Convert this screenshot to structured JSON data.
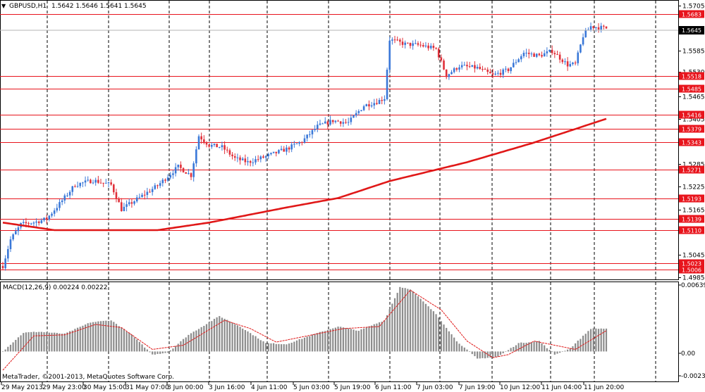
{
  "header": {
    "dropdown_icon": "triangle-down-icon",
    "symbol": "GBPUSD,H1",
    "ohlc": "1.5642 1.5646 1.5641 1.5645"
  },
  "macd": {
    "label": "MACD(12,26,9) 0.00224 0.00222",
    "axis_top": "0.00639",
    "axis_zero": "0.00",
    "axis_bottom": "-0.00234"
  },
  "copyright": "MetaTrader, ©2001-2013, MetaQuotes Software Corp.",
  "price_axis_labels": [
    "1.5705",
    "1.5585",
    "1.5530",
    "1.5465",
    "1.5405",
    "1.5285",
    "1.5225",
    "1.5165",
    "1.5045",
    "1.4985"
  ],
  "current_price": "1.5645",
  "red_levels": [
    "1.5683",
    "1.5518",
    "1.5485",
    "1.5416",
    "1.5379",
    "1.5343",
    "1.5271",
    "1.5193",
    "1.5139",
    "1.5110",
    "1.5023",
    "1.5006"
  ],
  "time_labels": [
    "29 May 2013",
    "29 May 23:00",
    "30 May 15:00",
    "31 May 07:00",
    "3 Jun 00:00",
    "3 Jun 16:00",
    "4 Jun 11:00",
    "5 Jun 03:00",
    "5 Jun 19:00",
    "6 Jun 11:00",
    "7 Jun 03:00",
    "7 Jun 19:00",
    "10 Jun 12:00",
    "11 Jun 04:00",
    "11 Jun 20:00"
  ],
  "colors": {
    "bull": "#3a78d8",
    "bear": "#e0303a",
    "level": "#e8141c",
    "ma": "#e01818",
    "histogram": "#8c8c8c",
    "signal": "#e01818"
  },
  "chart_data": {
    "type": "candlestick",
    "symbol": "GBPUSD",
    "timeframe": "H1",
    "y_range": [
      1.4985,
      1.5705
    ],
    "waypoints": [
      {
        "index": 0,
        "price": 1.5015
      },
      {
        "index": 3,
        "price": 1.5085
      },
      {
        "index": 7,
        "price": 1.5125
      },
      {
        "index": 13,
        "price": 1.5132
      },
      {
        "index": 17,
        "price": 1.514
      },
      {
        "index": 22,
        "price": 1.518
      },
      {
        "index": 28,
        "price": 1.523
      },
      {
        "index": 35,
        "price": 1.5242
      },
      {
        "index": 42,
        "price": 1.523
      },
      {
        "index": 46,
        "price": 1.5165
      },
      {
        "index": 52,
        "price": 1.5192
      },
      {
        "index": 60,
        "price": 1.5228
      },
      {
        "index": 68,
        "price": 1.5278
      },
      {
        "index": 73,
        "price": 1.5255
      },
      {
        "index": 76,
        "price": 1.536
      },
      {
        "index": 80,
        "price": 1.5335
      },
      {
        "index": 85,
        "price": 1.533
      },
      {
        "index": 90,
        "price": 1.53
      },
      {
        "index": 95,
        "price": 1.529
      },
      {
        "index": 102,
        "price": 1.5305
      },
      {
        "index": 110,
        "price": 1.5325
      },
      {
        "index": 116,
        "price": 1.5345
      },
      {
        "index": 122,
        "price": 1.5385
      },
      {
        "index": 128,
        "price": 1.54
      },
      {
        "index": 134,
        "price": 1.5395
      },
      {
        "index": 140,
        "price": 1.544
      },
      {
        "index": 145,
        "price": 1.545
      },
      {
        "index": 148,
        "price": 1.546
      },
      {
        "index": 150,
        "price": 1.5615
      },
      {
        "index": 156,
        "price": 1.5603
      },
      {
        "index": 162,
        "price": 1.56
      },
      {
        "index": 168,
        "price": 1.559
      },
      {
        "index": 172,
        "price": 1.552
      },
      {
        "index": 177,
        "price": 1.5545
      },
      {
        "index": 184,
        "price": 1.554
      },
      {
        "index": 190,
        "price": 1.552
      },
      {
        "index": 196,
        "price": 1.5535
      },
      {
        "index": 202,
        "price": 1.558
      },
      {
        "index": 208,
        "price": 1.5572
      },
      {
        "index": 213,
        "price": 1.5585
      },
      {
        "index": 219,
        "price": 1.5548
      },
      {
        "index": 222,
        "price": 1.555
      },
      {
        "index": 225,
        "price": 1.5625
      },
      {
        "index": 228,
        "price": 1.565
      },
      {
        "index": 234,
        "price": 1.5645
      }
    ],
    "moving_average": [
      {
        "index": 0,
        "price": 1.513
      },
      {
        "index": 20,
        "price": 1.511
      },
      {
        "index": 60,
        "price": 1.511
      },
      {
        "index": 80,
        "price": 1.513
      },
      {
        "index": 110,
        "price": 1.517
      },
      {
        "index": 130,
        "price": 1.5195
      },
      {
        "index": 150,
        "price": 1.524
      },
      {
        "index": 180,
        "price": 1.529
      },
      {
        "index": 205,
        "price": 1.534
      },
      {
        "index": 234,
        "price": 1.5405
      }
    ],
    "macd_range": [
      -0.00234,
      0.00639
    ],
    "macd_histogram": [
      {
        "index": 0,
        "value": 0.0
      },
      {
        "index": 8,
        "value": 0.0018
      },
      {
        "index": 14,
        "value": 0.0019
      },
      {
        "index": 24,
        "value": 0.0017
      },
      {
        "index": 34,
        "value": 0.0028
      },
      {
        "index": 42,
        "value": 0.003
      },
      {
        "index": 50,
        "value": 0.0016
      },
      {
        "index": 58,
        "value": -0.0003
      },
      {
        "index": 64,
        "value": -0.0001
      },
      {
        "index": 72,
        "value": 0.0016
      },
      {
        "index": 84,
        "value": 0.0034
      },
      {
        "index": 92,
        "value": 0.0024
      },
      {
        "index": 102,
        "value": 0.0008
      },
      {
        "index": 110,
        "value": 0.0007
      },
      {
        "index": 120,
        "value": 0.0016
      },
      {
        "index": 130,
        "value": 0.0024
      },
      {
        "index": 138,
        "value": 0.002
      },
      {
        "index": 148,
        "value": 0.003
      },
      {
        "index": 154,
        "value": 0.0062
      },
      {
        "index": 158,
        "value": 0.006
      },
      {
        "index": 168,
        "value": 0.0036
      },
      {
        "index": 176,
        "value": 0.001
      },
      {
        "index": 184,
        "value": -0.0007
      },
      {
        "index": 192,
        "value": -0.0005
      },
      {
        "index": 200,
        "value": 0.0008
      },
      {
        "index": 208,
        "value": 0.001
      },
      {
        "index": 214,
        "value": -0.0003
      },
      {
        "index": 220,
        "value": 0.0003
      },
      {
        "index": 228,
        "value": 0.0022
      },
      {
        "index": 234,
        "value": 0.0022
      }
    ],
    "macd_signal": [
      {
        "index": 0,
        "value": -0.0018
      },
      {
        "index": 12,
        "value": 0.0015
      },
      {
        "index": 24,
        "value": 0.0016
      },
      {
        "index": 36,
        "value": 0.0026
      },
      {
        "index": 46,
        "value": 0.0023
      },
      {
        "index": 58,
        "value": 0.0002
      },
      {
        "index": 70,
        "value": 0.0006
      },
      {
        "index": 86,
        "value": 0.003
      },
      {
        "index": 96,
        "value": 0.0022
      },
      {
        "index": 106,
        "value": 0.0009
      },
      {
        "index": 122,
        "value": 0.0017
      },
      {
        "index": 132,
        "value": 0.0022
      },
      {
        "index": 146,
        "value": 0.0024
      },
      {
        "index": 158,
        "value": 0.0059
      },
      {
        "index": 170,
        "value": 0.004
      },
      {
        "index": 180,
        "value": 0.001
      },
      {
        "index": 190,
        "value": -0.0006
      },
      {
        "index": 196,
        "value": -0.0003
      },
      {
        "index": 206,
        "value": 0.001
      },
      {
        "index": 214,
        "value": 0.0006
      },
      {
        "index": 222,
        "value": 0.0002
      },
      {
        "index": 234,
        "value": 0.002
      }
    ]
  }
}
